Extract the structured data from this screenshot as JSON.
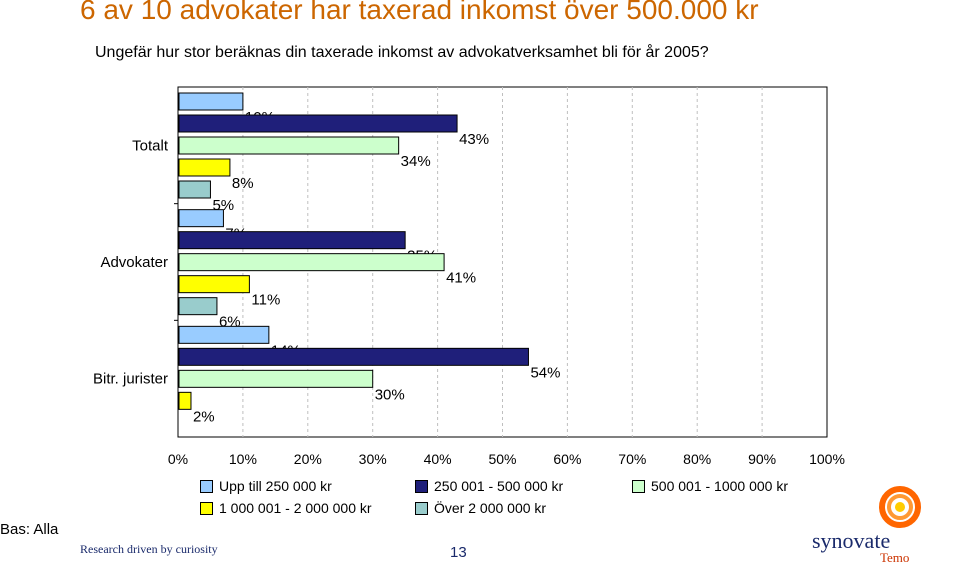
{
  "header": {
    "title": "6 av 10 advokater har taxerad inkomst över 500.000 kr",
    "subtitle": "Ungefär hur stor beräknas din taxerade inkomst av advokatverksamhet bli för år 2005?"
  },
  "chart_data": {
    "type": "bar",
    "orientation": "horizontal",
    "categories": [
      "Totalt",
      "Advokater",
      "Bitr. jurister"
    ],
    "series": [
      {
        "name": "Upp till 250 000 kr",
        "values": [
          10,
          7,
          14
        ],
        "color": "#99ccff"
      },
      {
        "name": "250 001 - 500 000 kr",
        "values": [
          43,
          35,
          54
        ],
        "color": "#1f1f7a"
      },
      {
        "name": "500 001 - 1000 000 kr",
        "values": [
          34,
          41,
          30
        ],
        "color": "#ccffcc"
      },
      {
        "name": "1 000 001 - 2 000 000 kr",
        "values": [
          8,
          11,
          2
        ],
        "color": "#ffff00"
      },
      {
        "name": "Över 2 000 000 kr",
        "values": [
          5,
          6,
          0
        ],
        "color": "#99cccc"
      }
    ],
    "value_labels": [
      [
        "10%",
        "43%",
        "34%",
        "8%",
        "5%"
      ],
      [
        "7%",
        "35%",
        "41%",
        "11%",
        "6%"
      ],
      [
        "14%",
        "54%",
        "30%",
        "2%",
        ""
      ]
    ],
    "x_ticks": [
      "0%",
      "10%",
      "20%",
      "30%",
      "40%",
      "50%",
      "60%",
      "70%",
      "80%",
      "90%",
      "100%"
    ],
    "xlim": [
      0,
      100
    ],
    "grid": true,
    "legend_position": "bottom"
  },
  "footer": {
    "bas": "Bas: Alla",
    "tagline": "Research driven by curiosity",
    "page": "13",
    "brand": "synovate",
    "sub_brand": "Temo"
  }
}
